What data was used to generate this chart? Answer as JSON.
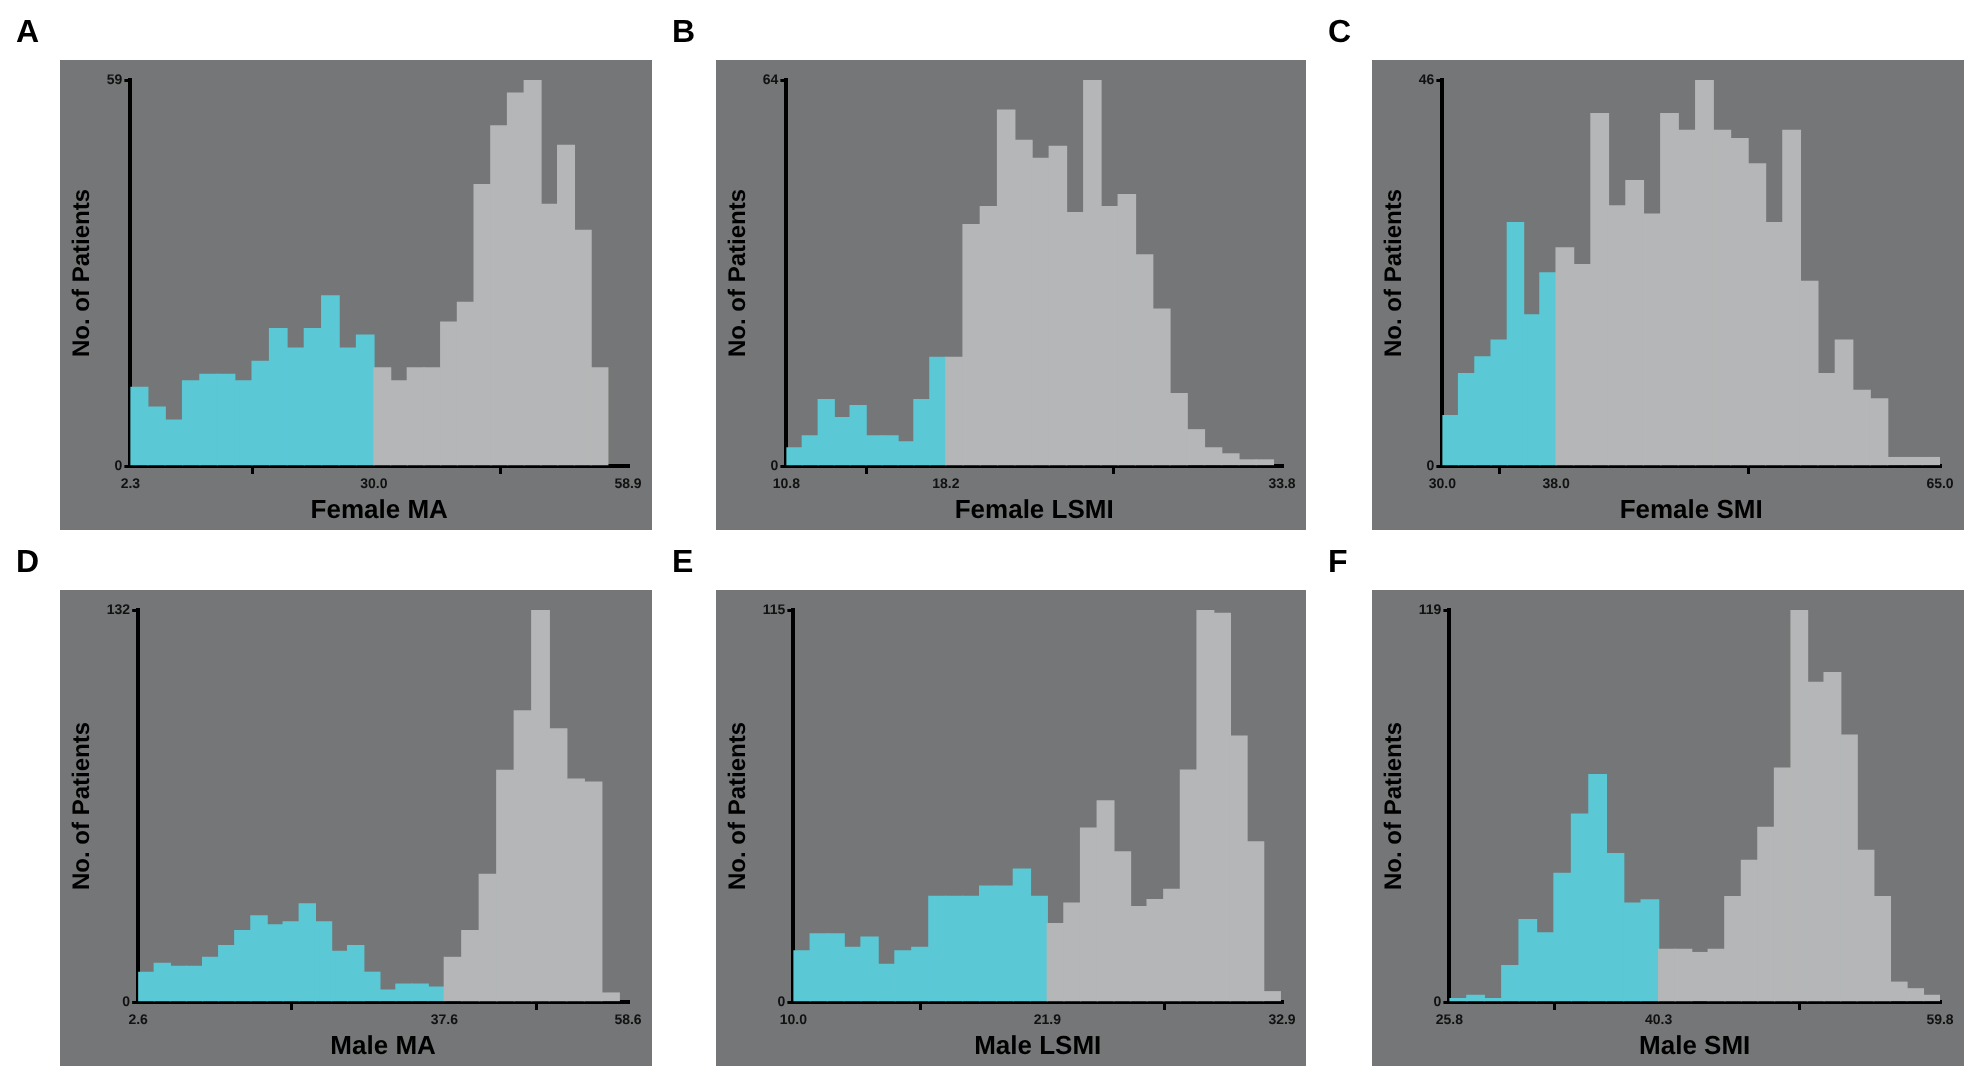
{
  "chart_data": [
    {
      "type": "histogram",
      "title": "A",
      "xlabel": "Female MA",
      "ylabel": "No. of Patients",
      "xlim": [
        2.3,
        58.9
      ],
      "xticks": [
        2.3,
        {
          "value": 30.0,
          "label": "30.0"
        },
        58.9
      ],
      "ylim": [
        0,
        59
      ],
      "yticks": [
        0,
        59
      ],
      "bins": [
        2.3,
        4.28,
        6.26,
        8.24,
        10.21,
        12.19,
        14.17,
        16.15,
        18.13,
        20.11,
        22.09,
        24.06,
        26.04,
        28.02,
        30.0,
        31.9,
        33.8,
        35.7,
        37.6,
        39.5,
        41.4,
        43.3,
        45.2,
        47.1,
        49.0,
        50.9,
        52.8,
        54.7,
        56.6
      ],
      "values": [
        12,
        9,
        7,
        13,
        14,
        14,
        13,
        16,
        21,
        18,
        21,
        26,
        18,
        20,
        15,
        13,
        15,
        15,
        22,
        25,
        43,
        52,
        57,
        59,
        40,
        49,
        36,
        15
      ],
      "colors": [
        "#5bc8d6",
        "#5bc8d6",
        "#5bc8d6",
        "#5bc8d6",
        "#5bc8d6",
        "#5bc8d6",
        "#5bc8d6",
        "#5bc8d6",
        "#5bc8d6",
        "#5bc8d6",
        "#5bc8d6",
        "#5bc8d6",
        "#5bc8d6",
        "#5bc8d6",
        "#b4b6b7",
        "#b4b6b7",
        "#b4b6b7",
        "#b4b6b7",
        "#b4b6b7",
        "#b4b6b7",
        "#b4b6b7",
        "#b4b6b7",
        "#b4b6b7",
        "#b4b6b7",
        "#b4b6b7",
        "#b4b6b7",
        "#b4b6b7",
        "#b4b6b7"
      ]
    },
    {
      "type": "histogram",
      "title": "B",
      "xlabel": "Female LSMI",
      "ylabel": "No. of Patients",
      "xlim": [
        10.8,
        33.8
      ],
      "xticks": [
        10.8,
        18.2,
        33.8
      ],
      "ylim": [
        0,
        64
      ],
      "yticks": [
        0,
        64
      ],
      "bins": [
        10.8,
        11.54,
        12.28,
        13.02,
        13.76,
        14.5,
        15.24,
        15.98,
        16.72,
        17.46,
        18.2,
        19.0,
        19.8,
        20.6,
        21.4,
        22.2,
        23.0,
        23.8,
        24.6,
        25.4,
        26.2,
        27.0,
        27.8,
        28.6,
        29.4,
        30.2,
        31.0,
        31.8,
        32.6,
        33.4
      ],
      "values": [
        3,
        5,
        11,
        8,
        10,
        5,
        5,
        4,
        11,
        18,
        18,
        40,
        43,
        59,
        54,
        51,
        53,
        42,
        64,
        43,
        45,
        35,
        26,
        12,
        6,
        3,
        2,
        1,
        1
      ],
      "colors": [
        "#5bc8d6",
        "#5bc8d6",
        "#5bc8d6",
        "#5bc8d6",
        "#5bc8d6",
        "#5bc8d6",
        "#5bc8d6",
        "#5bc8d6",
        "#5bc8d6",
        "#5bc8d6",
        "#b4b6b7",
        "#b4b6b7",
        "#b4b6b7",
        "#b4b6b7",
        "#b4b6b7",
        "#b4b6b7",
        "#b4b6b7",
        "#b4b6b7",
        "#b4b6b7",
        "#b4b6b7",
        "#b4b6b7",
        "#b4b6b7",
        "#b4b6b7",
        "#b4b6b7",
        "#b4b6b7",
        "#b4b6b7",
        "#b4b6b7",
        "#b4b6b7",
        "#b4b6b7"
      ]
    },
    {
      "type": "histogram",
      "title": "C",
      "xlabel": "Female SMI",
      "ylabel": "No. of Patients",
      "xlim": [
        30.0,
        65.0
      ],
      "xticks": [
        {
          "value": 30.0,
          "label": "30.0"
        },
        {
          "value": 38.0,
          "label": "38.0"
        },
        {
          "value": 65.0,
          "label": "65.0"
        }
      ],
      "ylim": [
        0,
        46
      ],
      "yticks": [
        0,
        46
      ],
      "bins": [
        30.0,
        31.14,
        32.29,
        33.43,
        34.57,
        35.71,
        36.86,
        38.0,
        39.23,
        40.45,
        41.68,
        42.91,
        44.14,
        45.36,
        46.59,
        47.82,
        49.05,
        50.27,
        51.5,
        52.73,
        53.95,
        55.18,
        56.41,
        57.64,
        58.86,
        60.09,
        61.32,
        62.55,
        63.77,
        65.0
      ],
      "values": [
        6,
        11,
        13,
        15,
        29,
        18,
        23,
        26,
        24,
        42,
        31,
        34,
        30,
        42,
        40,
        46,
        40,
        39,
        36,
        29,
        40,
        22,
        11,
        15,
        9,
        8,
        1,
        1,
        1
      ],
      "colors": [
        "#5bc8d6",
        "#5bc8d6",
        "#5bc8d6",
        "#5bc8d6",
        "#5bc8d6",
        "#5bc8d6",
        "#5bc8d6",
        "#b4b6b7",
        "#b4b6b7",
        "#b4b6b7",
        "#b4b6b7",
        "#b4b6b7",
        "#b4b6b7",
        "#b4b6b7",
        "#b4b6b7",
        "#b4b6b7",
        "#b4b6b7",
        "#b4b6b7",
        "#b4b6b7",
        "#b4b6b7",
        "#b4b6b7",
        "#b4b6b7",
        "#b4b6b7",
        "#b4b6b7",
        "#b4b6b7",
        "#b4b6b7",
        "#b4b6b7",
        "#b4b6b7",
        "#b4b6b7"
      ]
    },
    {
      "type": "histogram",
      "title": "D",
      "xlabel": "Male MA",
      "ylabel": "No. of Patients",
      "xlim": [
        2.6,
        58.6
      ],
      "xticks": [
        2.6,
        37.6,
        58.6
      ],
      "ylim": [
        0,
        132
      ],
      "yticks": [
        0,
        132
      ],
      "bins": [
        2.6,
        4.44,
        6.28,
        8.13,
        9.97,
        11.81,
        13.65,
        15.49,
        17.34,
        19.18,
        21.02,
        22.86,
        24.71,
        26.55,
        28.39,
        30.23,
        32.07,
        33.92,
        35.76,
        37.6,
        39.6,
        41.6,
        43.6,
        45.6,
        47.6,
        49.6,
        51.6,
        53.6,
        55.6,
        57.6
      ],
      "values": [
        10,
        13,
        12,
        12,
        15,
        19,
        24,
        29,
        26,
        27,
        33,
        27,
        17,
        19,
        10,
        4,
        6,
        6,
        5,
        15,
        24,
        43,
        78,
        98,
        132,
        92,
        75,
        74,
        3
      ],
      "colors": [
        "#5bc8d6",
        "#5bc8d6",
        "#5bc8d6",
        "#5bc8d6",
        "#5bc8d6",
        "#5bc8d6",
        "#5bc8d6",
        "#5bc8d6",
        "#5bc8d6",
        "#5bc8d6",
        "#5bc8d6",
        "#5bc8d6",
        "#5bc8d6",
        "#5bc8d6",
        "#5bc8d6",
        "#5bc8d6",
        "#5bc8d6",
        "#5bc8d6",
        "#5bc8d6",
        "#b4b6b7",
        "#b4b6b7",
        "#b4b6b7",
        "#b4b6b7",
        "#b4b6b7",
        "#b4b6b7",
        "#b4b6b7",
        "#b4b6b7",
        "#b4b6b7",
        "#b4b6b7"
      ]
    },
    {
      "type": "histogram",
      "title": "E",
      "xlabel": "Male LSMI",
      "ylabel": "No. of Patients",
      "xlim": [
        10.0,
        32.9
      ],
      "xticks": [
        {
          "value": 10.0,
          "label": "10.0"
        },
        21.9,
        32.9
      ],
      "ylim": [
        0,
        115
      ],
      "yticks": [
        0,
        115
      ],
      "bins": [
        10.0,
        10.79,
        11.59,
        12.38,
        13.17,
        13.97,
        14.76,
        15.55,
        16.35,
        17.14,
        17.93,
        18.73,
        19.52,
        20.31,
        21.11,
        21.9,
        22.68,
        23.46,
        24.24,
        25.02,
        25.8,
        26.58,
        27.36,
        28.14,
        28.92,
        29.7,
        30.48,
        31.26,
        32.04,
        32.82
      ],
      "values": [
        15,
        20,
        20,
        16,
        19,
        11,
        15,
        16,
        31,
        31,
        31,
        34,
        34,
        39,
        31,
        23,
        29,
        51,
        59,
        44,
        28,
        30,
        33,
        68,
        115,
        114,
        78,
        47,
        3
      ],
      "colors": [
        "#5bc8d6",
        "#5bc8d6",
        "#5bc8d6",
        "#5bc8d6",
        "#5bc8d6",
        "#5bc8d6",
        "#5bc8d6",
        "#5bc8d6",
        "#5bc8d6",
        "#5bc8d6",
        "#5bc8d6",
        "#5bc8d6",
        "#5bc8d6",
        "#5bc8d6",
        "#5bc8d6",
        "#b4b6b7",
        "#b4b6b7",
        "#b4b6b7",
        "#b4b6b7",
        "#b4b6b7",
        "#b4b6b7",
        "#b4b6b7",
        "#b4b6b7",
        "#b4b6b7",
        "#b4b6b7",
        "#b4b6b7",
        "#b4b6b7",
        "#b4b6b7",
        "#b4b6b7"
      ]
    },
    {
      "type": "histogram",
      "title": "F",
      "xlabel": "Male SMI",
      "ylabel": "No. of Patients",
      "xlim": [
        25.8,
        59.8
      ],
      "xticks": [
        25.8,
        40.3,
        59.8
      ],
      "ylim": [
        0,
        119
      ],
      "yticks": [
        0,
        119
      ],
      "bins": [
        25.8,
        27.01,
        28.22,
        29.43,
        30.63,
        31.84,
        33.05,
        34.26,
        35.47,
        36.68,
        37.88,
        39.09,
        40.3,
        41.45,
        42.59,
        43.74,
        44.89,
        46.04,
        47.18,
        48.33,
        49.48,
        50.62,
        51.77,
        52.92,
        54.06,
        55.21,
        56.36,
        57.51,
        58.65,
        59.8
      ],
      "values": [
        1,
        2,
        1,
        11,
        25,
        21,
        39,
        57,
        69,
        45,
        30,
        31,
        16,
        16,
        15,
        16,
        32,
        43,
        53,
        71,
        119,
        97,
        100,
        81,
        46,
        32,
        6,
        4,
        2
      ],
      "colors": [
        "#5bc8d6",
        "#5bc8d6",
        "#5bc8d6",
        "#5bc8d6",
        "#5bc8d6",
        "#5bc8d6",
        "#5bc8d6",
        "#5bc8d6",
        "#5bc8d6",
        "#5bc8d6",
        "#5bc8d6",
        "#5bc8d6",
        "#b4b6b7",
        "#b4b6b7",
        "#b4b6b7",
        "#b4b6b7",
        "#b4b6b7",
        "#b4b6b7",
        "#b4b6b7",
        "#b4b6b7",
        "#b4b6b7",
        "#b4b6b7",
        "#b4b6b7",
        "#b4b6b7",
        "#b4b6b7",
        "#b4b6b7",
        "#b4b6b7",
        "#b4b6b7",
        "#b4b6b7"
      ]
    }
  ]
}
